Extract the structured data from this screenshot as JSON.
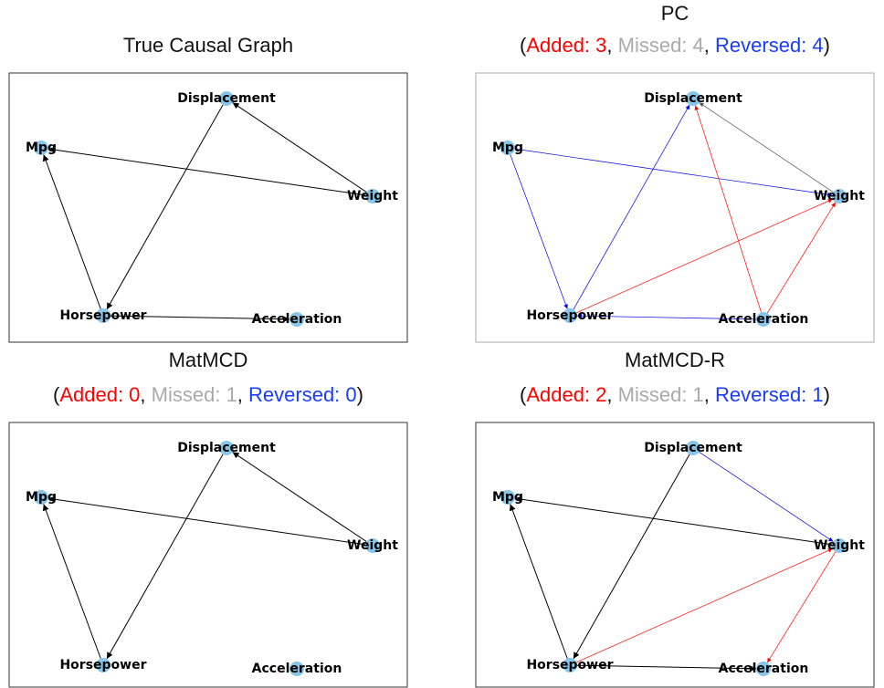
{
  "panels": [
    {
      "title": "True Causal Graph",
      "subtitle": [],
      "nodes": [
        "Displacement",
        "Mpg",
        "Weight",
        "Horsepower",
        "Acceleration"
      ]
    },
    {
      "title": "PC",
      "subtitle": [
        "(",
        "Added: 3",
        ", ",
        "Missed: 4",
        ", ",
        "Reversed: 4",
        ")"
      ],
      "nodes": [
        "Displacement",
        "Mpg",
        "Weight",
        "Horsepower",
        "Acceleration"
      ]
    },
    {
      "title": "MatMCD",
      "subtitle": [
        "(",
        "Added: 0",
        ", ",
        "Missed: 1",
        ", ",
        "Reversed: 0",
        ")"
      ],
      "nodes": [
        "Displacement",
        "Mpg",
        "Weight",
        "Horsepower",
        "Acceleration"
      ]
    },
    {
      "title": "MatMCD-R",
      "subtitle": [
        "(",
        "Added: 2",
        ", ",
        "Missed: 1",
        ", ",
        "Reversed: 1",
        ")"
      ],
      "nodes": [
        "Displacement",
        "Mpg",
        "Weight",
        "Horsepower",
        "Acceleration"
      ]
    }
  ]
}
